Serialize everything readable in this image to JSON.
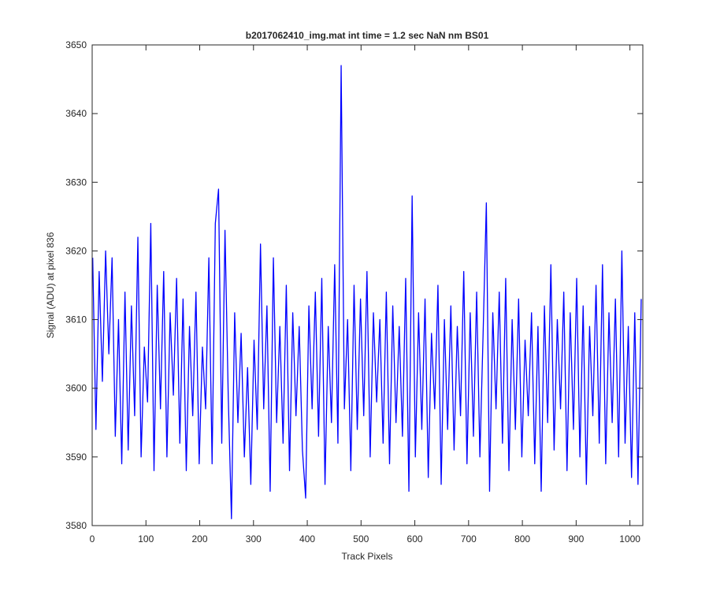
{
  "chart_data": {
    "type": "line",
    "title": "b2017062410_img.mat int time = 1.2 sec  NaN nm BS01",
    "xlabel": "Track Pixels",
    "ylabel": "Signal (ADU) at pixel 836",
    "color": "#0000ff",
    "xlim": [
      0,
      1024
    ],
    "ylim": [
      3580,
      3650
    ],
    "xticks": [
      0,
      100,
      200,
      300,
      400,
      500,
      600,
      700,
      800,
      900,
      1000
    ],
    "yticks": [
      3580,
      3590,
      3600,
      3610,
      3620,
      3630,
      3640,
      3650
    ],
    "x": [
      1,
      7,
      13,
      19,
      25,
      31,
      37,
      43,
      49,
      55,
      61,
      67,
      73,
      79,
      85,
      91,
      97,
      103,
      109,
      115,
      121,
      127,
      133,
      139,
      145,
      151,
      157,
      163,
      169,
      175,
      181,
      187,
      193,
      199,
      205,
      211,
      217,
      223,
      229,
      235,
      241,
      247,
      253,
      259,
      265,
      271,
      277,
      283,
      289,
      295,
      301,
      307,
      313,
      319,
      325,
      331,
      337,
      343,
      349,
      355,
      361,
      367,
      373,
      379,
      385,
      391,
      397,
      403,
      409,
      415,
      421,
      427,
      433,
      439,
      445,
      451,
      457,
      463,
      469,
      475,
      481,
      487,
      493,
      499,
      505,
      511,
      517,
      523,
      529,
      535,
      541,
      547,
      553,
      559,
      565,
      571,
      577,
      583,
      589,
      595,
      601,
      607,
      613,
      619,
      625,
      631,
      637,
      643,
      649,
      655,
      661,
      667,
      673,
      679,
      685,
      691,
      697,
      703,
      709,
      715,
      721,
      727,
      733,
      739,
      745,
      751,
      757,
      763,
      769,
      775,
      781,
      787,
      793,
      799,
      805,
      811,
      817,
      823,
      829,
      835,
      841,
      847,
      853,
      859,
      865,
      871,
      877,
      883,
      889,
      895,
      901,
      907,
      913,
      919,
      925,
      931,
      937,
      943,
      949,
      955,
      961,
      967,
      973,
      979,
      985,
      991,
      997,
      1003,
      1009,
      1015,
      1021
    ],
    "values": [
      3619,
      3594,
      3617,
      3601,
      3620,
      3605,
      3619,
      3593,
      3610,
      3589,
      3614,
      3591,
      3612,
      3596,
      3622,
      3590,
      3606,
      3598,
      3624,
      3588,
      3615,
      3597,
      3617,
      3590,
      3611,
      3599,
      3616,
      3592,
      3613,
      3588,
      3609,
      3596,
      3614,
      3589,
      3606,
      3597,
      3619,
      3589,
      3624,
      3629,
      3592,
      3623,
      3599,
      3581,
      3611,
      3595,
      3608,
      3590,
      3603,
      3586,
      3607,
      3594,
      3621,
      3597,
      3612,
      3585,
      3619,
      3595,
      3609,
      3592,
      3615,
      3588,
      3611,
      3596,
      3609,
      3591,
      3584,
      3612,
      3597,
      3614,
      3593,
      3616,
      3586,
      3609,
      3595,
      3618,
      3592,
      3647,
      3597,
      3610,
      3588,
      3615,
      3594,
      3613,
      3596,
      3617,
      3590,
      3611,
      3598,
      3610,
      3592,
      3614,
      3589,
      3612,
      3595,
      3609,
      3593,
      3616,
      3585,
      3628,
      3590,
      3611,
      3594,
      3613,
      3587,
      3608,
      3597,
      3615,
      3586,
      3610,
      3594,
      3612,
      3591,
      3609,
      3596,
      3617,
      3589,
      3611,
      3593,
      3614,
      3590,
      3608,
      3627,
      3585,
      3611,
      3597,
      3614,
      3592,
      3616,
      3588,
      3610,
      3594,
      3613,
      3590,
      3607,
      3596,
      3611,
      3589,
      3609,
      3585,
      3612,
      3595,
      3618,
      3591,
      3610,
      3597,
      3614,
      3588,
      3611,
      3594,
      3616,
      3590,
      3612,
      3586,
      3609,
      3596,
      3615,
      3592,
      3618,
      3589,
      3611,
      3595,
      3613,
      3590,
      3620,
      3592,
      3609,
      3587,
      3611,
      3586,
      3613
    ]
  }
}
